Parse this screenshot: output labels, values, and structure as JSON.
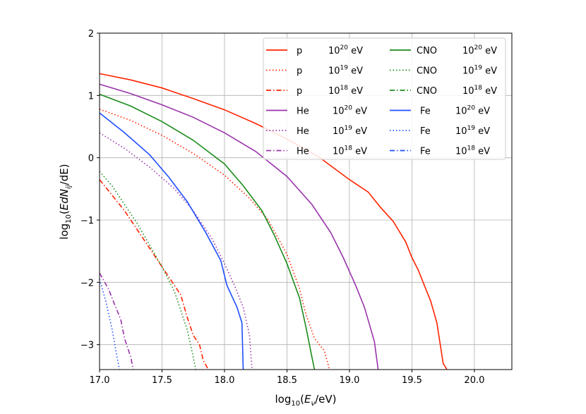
{
  "chart_data": {
    "type": "line",
    "title": "",
    "xlabel": {
      "base": "log",
      "sub": "10",
      "open": "(",
      "var": "E",
      "var_sub": "ν",
      "rest": "/eV)"
    },
    "ylabel": {
      "base": "log",
      "sub": "10",
      "open": "(",
      "var": "EdN",
      "var_sub": "ij",
      "rest": "/dE)"
    },
    "xlim": [
      17.0,
      20.3
    ],
    "ylim": [
      -3.4,
      2.0
    ],
    "xticks": [
      "17.0",
      "17.5",
      "18.0",
      "18.5",
      "19.0",
      "19.5",
      "20.0"
    ],
    "xtick_values": [
      17.0,
      17.5,
      18.0,
      18.5,
      19.0,
      19.5,
      20.0
    ],
    "yticks": [
      "−3",
      "−2",
      "−1",
      "0",
      "1",
      "2"
    ],
    "ytick_values": [
      -3,
      -2,
      -1,
      0,
      1,
      2
    ],
    "grid": true,
    "legend_placement": "top-right",
    "energy_unit": "eV",
    "series": [
      {
        "name": "p",
        "exponent": "20",
        "color": "#ff2200",
        "style": "solid",
        "points": [
          [
            17.0,
            1.35
          ],
          [
            17.25,
            1.25
          ],
          [
            17.5,
            1.12
          ],
          [
            17.75,
            0.95
          ],
          [
            18.0,
            0.77
          ],
          [
            18.25,
            0.55
          ],
          [
            18.5,
            0.3
          ],
          [
            18.75,
            0.02
          ],
          [
            19.0,
            -0.35
          ],
          [
            19.15,
            -0.55
          ],
          [
            19.25,
            -0.8
          ],
          [
            19.35,
            -1.02
          ],
          [
            19.45,
            -1.35
          ],
          [
            19.5,
            -1.6
          ],
          [
            19.55,
            -1.8
          ],
          [
            19.6,
            -2.05
          ],
          [
            19.65,
            -2.3
          ],
          [
            19.7,
            -2.65
          ],
          [
            19.75,
            -3.3
          ],
          [
            19.78,
            -3.4
          ]
        ]
      },
      {
        "name": "p",
        "exponent": "19",
        "color": "#ff2200",
        "style": "dotted",
        "points": [
          [
            17.0,
            0.78
          ],
          [
            17.25,
            0.6
          ],
          [
            17.5,
            0.36
          ],
          [
            17.75,
            0.07
          ],
          [
            18.0,
            -0.28
          ],
          [
            18.2,
            -0.65
          ],
          [
            18.35,
            -1.0
          ],
          [
            18.5,
            -1.55
          ],
          [
            18.6,
            -2.1
          ],
          [
            18.65,
            -2.5
          ],
          [
            18.72,
            -2.9
          ],
          [
            18.8,
            -3.1
          ],
          [
            18.84,
            -3.4
          ]
        ]
      },
      {
        "name": "p",
        "exponent": "18",
        "color": "#ff2200",
        "style": "dashdot",
        "points": [
          [
            17.0,
            -0.35
          ],
          [
            17.1,
            -0.6
          ],
          [
            17.2,
            -0.85
          ],
          [
            17.3,
            -1.15
          ],
          [
            17.4,
            -1.45
          ],
          [
            17.5,
            -1.75
          ],
          [
            17.6,
            -2.05
          ],
          [
            17.65,
            -2.2
          ],
          [
            17.7,
            -2.55
          ],
          [
            17.75,
            -2.85
          ],
          [
            17.8,
            -3.0
          ],
          [
            17.83,
            -3.25
          ],
          [
            17.87,
            -3.4
          ]
        ]
      },
      {
        "name": "He",
        "exponent": "20",
        "color": "#9933aa",
        "style": "solid",
        "points": [
          [
            17.0,
            1.18
          ],
          [
            17.25,
            1.03
          ],
          [
            17.5,
            0.85
          ],
          [
            17.75,
            0.65
          ],
          [
            18.0,
            0.4
          ],
          [
            18.25,
            0.1
          ],
          [
            18.5,
            -0.3
          ],
          [
            18.7,
            -0.75
          ],
          [
            18.85,
            -1.2
          ],
          [
            18.95,
            -1.6
          ],
          [
            19.05,
            -2.05
          ],
          [
            19.12,
            -2.4
          ],
          [
            19.2,
            -2.95
          ],
          [
            19.23,
            -3.4
          ]
        ]
      },
      {
        "name": "He",
        "exponent": "19",
        "color": "#9933aa",
        "style": "dotted",
        "points": [
          [
            17.0,
            0.4
          ],
          [
            17.2,
            0.15
          ],
          [
            17.4,
            -0.15
          ],
          [
            17.6,
            -0.5
          ],
          [
            17.75,
            -0.85
          ],
          [
            17.9,
            -1.3
          ],
          [
            18.0,
            -1.7
          ],
          [
            18.08,
            -2.05
          ],
          [
            18.15,
            -2.4
          ],
          [
            18.2,
            -2.85
          ],
          [
            18.22,
            -3.4
          ]
        ]
      },
      {
        "name": "He",
        "exponent": "18",
        "color": "#9933aa",
        "style": "dashdot",
        "points": [
          [
            17.0,
            -1.85
          ],
          [
            17.07,
            -2.1
          ],
          [
            17.12,
            -2.35
          ],
          [
            17.17,
            -2.6
          ],
          [
            17.2,
            -2.9
          ],
          [
            17.25,
            -3.2
          ],
          [
            17.27,
            -3.4
          ]
        ]
      },
      {
        "name": "CNO",
        "exponent": "20",
        "color": "#1a8c1a",
        "style": "solid",
        "points": [
          [
            17.0,
            1.02
          ],
          [
            17.25,
            0.83
          ],
          [
            17.5,
            0.58
          ],
          [
            17.75,
            0.28
          ],
          [
            18.0,
            -0.1
          ],
          [
            18.15,
            -0.45
          ],
          [
            18.3,
            -0.85
          ],
          [
            18.4,
            -1.25
          ],
          [
            18.5,
            -1.7
          ],
          [
            18.6,
            -2.25
          ],
          [
            18.65,
            -2.7
          ],
          [
            18.7,
            -3.2
          ],
          [
            18.72,
            -3.4
          ]
        ]
      },
      {
        "name": "CNO",
        "exponent": "19",
        "color": "#1a8c1a",
        "style": "dotted",
        "points": [
          [
            17.0,
            -0.22
          ],
          [
            17.1,
            -0.45
          ],
          [
            17.2,
            -0.75
          ],
          [
            17.3,
            -1.05
          ],
          [
            17.4,
            -1.4
          ],
          [
            17.5,
            -1.75
          ],
          [
            17.6,
            -2.15
          ],
          [
            17.65,
            -2.45
          ],
          [
            17.7,
            -2.75
          ],
          [
            17.75,
            -3.2
          ],
          [
            17.77,
            -3.4
          ]
        ]
      },
      {
        "name": "CNO",
        "exponent": "18",
        "color": "#1a8c1a",
        "style": "dashdot",
        "points": []
      },
      {
        "name": "Fe",
        "exponent": "20",
        "color": "#1f4fff",
        "style": "solid",
        "points": [
          [
            17.0,
            0.72
          ],
          [
            17.2,
            0.4
          ],
          [
            17.4,
            0.05
          ],
          [
            17.55,
            -0.3
          ],
          [
            17.7,
            -0.7
          ],
          [
            17.85,
            -1.2
          ],
          [
            17.97,
            -1.65
          ],
          [
            18.02,
            -2.05
          ],
          [
            18.1,
            -2.4
          ],
          [
            18.14,
            -2.65
          ],
          [
            18.15,
            -3.4
          ]
        ]
      },
      {
        "name": "Fe",
        "exponent": "19",
        "color": "#1f4fff",
        "style": "dotted",
        "points": [
          [
            17.0,
            -1.95
          ],
          [
            17.05,
            -2.3
          ],
          [
            17.1,
            -2.75
          ],
          [
            17.14,
            -3.2
          ],
          [
            17.16,
            -3.4
          ]
        ]
      },
      {
        "name": "Fe",
        "exponent": "18",
        "color": "#1f4fff",
        "style": "dashdot",
        "points": []
      }
    ]
  }
}
